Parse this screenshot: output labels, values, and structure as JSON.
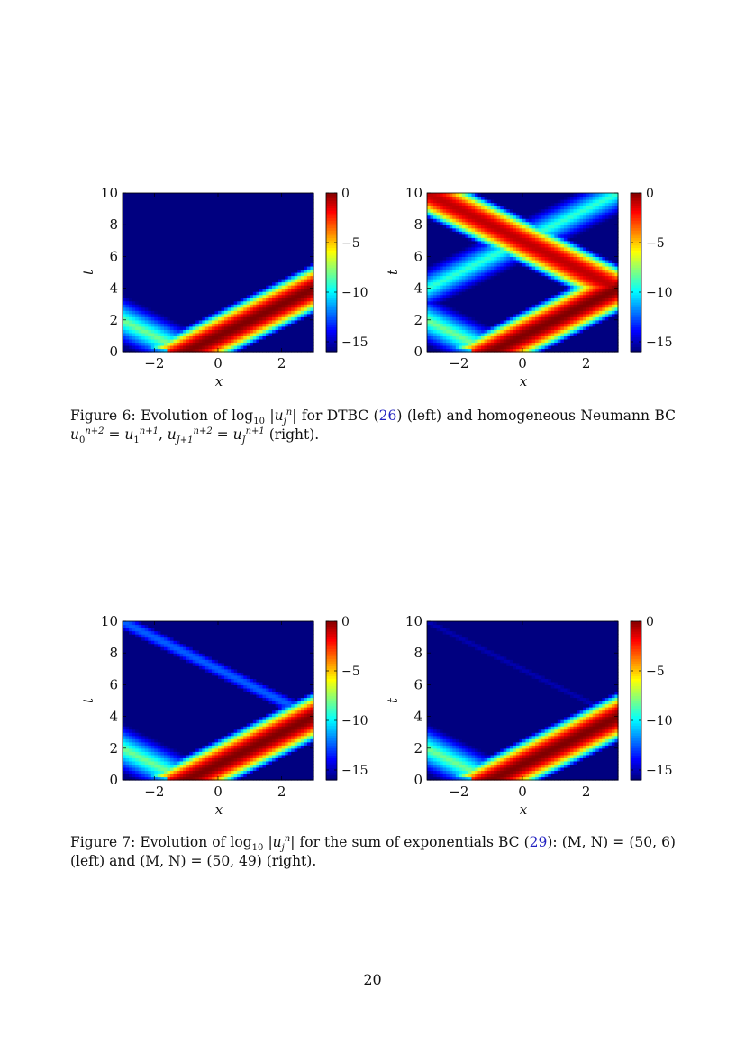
{
  "figures": [
    {
      "id": "fig6",
      "caption": {
        "label": "Figure 6:",
        "before": "Evolution of log",
        "log_sub": "10",
        "abs_u": "u",
        "abs_sub": "j",
        "abs_sup": "n",
        "middle1": "for DTBC (",
        "ref1": "26",
        "middle2": ") (left) and homogeneous Neumann BC",
        "eq1": "u",
        "eq1_sub": "0",
        "eq1_sup": "n+2",
        "eq1_rhs": "u",
        "eq1_rhs_sub": "1",
        "eq1_rhs_sup": "n+1",
        "eq2": "u",
        "eq2_sub": "J+1",
        "eq2_sup": "n+2",
        "eq2_rhs": "u",
        "eq2_rhs_sub": "J",
        "eq2_rhs_sup": "n+1",
        "end": "(right)."
      }
    },
    {
      "id": "fig7",
      "caption": {
        "label": "Figure 7:",
        "before": "Evolution of log",
        "log_sub": "10",
        "abs_u": "u",
        "abs_sub": "j",
        "abs_sup": "n",
        "middle1": "for the sum of exponentials BC (",
        "ref1": "29",
        "middle2": "): (M, N) = (50, 6) (left) and (M, N) = (50, 49) (right)."
      }
    }
  ],
  "page_number": "20",
  "chart_data": [
    {
      "type": "heatmap",
      "title": "",
      "xlabel": "x",
      "ylabel": "t",
      "xlim": [
        -3,
        3
      ],
      "ylim": [
        0,
        10
      ],
      "xticks": [
        "−2",
        "0",
        "2"
      ],
      "xtick_values": [
        -2,
        0,
        2
      ],
      "yticks": [
        "0",
        "2",
        "4",
        "6",
        "8",
        "10"
      ],
      "ytick_values": [
        0,
        2,
        4,
        6,
        8,
        10
      ],
      "colorbar": {
        "range": [
          -16,
          0
        ],
        "ticks": [
          "0",
          "−5",
          "−10",
          "−15"
        ],
        "tick_values": [
          0,
          -5,
          -10,
          -15
        ],
        "colormap": "jet"
      },
      "features": [
        {
          "kind": "right-moving-pulse",
          "x0": -1,
          "speed": 1,
          "peak": 0,
          "width": 1.0
        },
        {
          "kind": "left-moving-tail",
          "x0": -1,
          "speed": -1,
          "peak": -8,
          "width": 1.6
        }
      ],
      "background": -16
    },
    {
      "type": "heatmap",
      "title": "",
      "xlabel": "x",
      "ylabel": "t",
      "xlim": [
        -3,
        3
      ],
      "ylim": [
        0,
        10
      ],
      "xticks": [
        "−2",
        "0",
        "2"
      ],
      "xtick_values": [
        -2,
        0,
        2
      ],
      "yticks": [
        "0",
        "2",
        "4",
        "6",
        "8",
        "10"
      ],
      "ytick_values": [
        0,
        2,
        4,
        6,
        8,
        10
      ],
      "colorbar": {
        "range": [
          -16,
          0
        ],
        "ticks": [
          "0",
          "−5",
          "−10",
          "−15"
        ],
        "tick_values": [
          0,
          -5,
          -10,
          -15
        ],
        "colormap": "jet"
      },
      "features": [
        {
          "kind": "right-moving-pulse",
          "x0": -1,
          "speed": 1,
          "peak": 0,
          "width": 1.0
        },
        {
          "kind": "left-moving-tail",
          "x0": -1,
          "speed": -1,
          "peak": -8,
          "width": 1.6
        },
        {
          "kind": "reflected-pulse",
          "x0": 7,
          "speed": -1,
          "peak": -1,
          "width": 1.0
        },
        {
          "kind": "reflected-tail",
          "x0": -7,
          "speed": 1,
          "peak": -9,
          "width": 1.6
        }
      ],
      "background": -16
    },
    {
      "type": "heatmap",
      "title": "",
      "xlabel": "x",
      "ylabel": "t",
      "xlim": [
        -3,
        3
      ],
      "ylim": [
        0,
        10
      ],
      "xticks": [
        "−2",
        "0",
        "2"
      ],
      "xtick_values": [
        -2,
        0,
        2
      ],
      "yticks": [
        "0",
        "2",
        "4",
        "6",
        "8",
        "10"
      ],
      "ytick_values": [
        0,
        2,
        4,
        6,
        8,
        10
      ],
      "colorbar": {
        "range": [
          -16,
          0
        ],
        "ticks": [
          "0",
          "−5",
          "−10",
          "−15"
        ],
        "tick_values": [
          0,
          -5,
          -10,
          -15
        ],
        "colormap": "jet"
      },
      "features": [
        {
          "kind": "right-moving-pulse",
          "x0": -1,
          "speed": 1,
          "peak": 0,
          "width": 1.0
        },
        {
          "kind": "left-moving-tail",
          "x0": -1,
          "speed": -1,
          "peak": -8,
          "width": 1.6
        },
        {
          "kind": "reflected-pulse",
          "x0": 7,
          "speed": -1,
          "peak": -12.5,
          "width": 0.7
        }
      ],
      "background": -16
    },
    {
      "type": "heatmap",
      "title": "",
      "xlabel": "x",
      "ylabel": "t",
      "xlim": [
        -3,
        3
      ],
      "ylim": [
        0,
        10
      ],
      "xticks": [
        "−2",
        "0",
        "2"
      ],
      "xtick_values": [
        -2,
        0,
        2
      ],
      "yticks": [
        "0",
        "2",
        "4",
        "6",
        "8",
        "10"
      ],
      "ytick_values": [
        0,
        2,
        4,
        6,
        8,
        10
      ],
      "colorbar": {
        "range": [
          -16,
          0
        ],
        "ticks": [
          "0",
          "−5",
          "−10",
          "−15"
        ],
        "tick_values": [
          0,
          -5,
          -10,
          -15
        ],
        "colormap": "jet"
      },
      "features": [
        {
          "kind": "right-moving-pulse",
          "x0": -1,
          "speed": 1,
          "peak": 0,
          "width": 1.0
        },
        {
          "kind": "left-moving-tail",
          "x0": -1,
          "speed": -1,
          "peak": -8,
          "width": 1.6
        },
        {
          "kind": "reflected-pulse",
          "x0": 7,
          "speed": -1,
          "peak": -15.2,
          "width": 0.6
        }
      ],
      "background": -16
    }
  ]
}
